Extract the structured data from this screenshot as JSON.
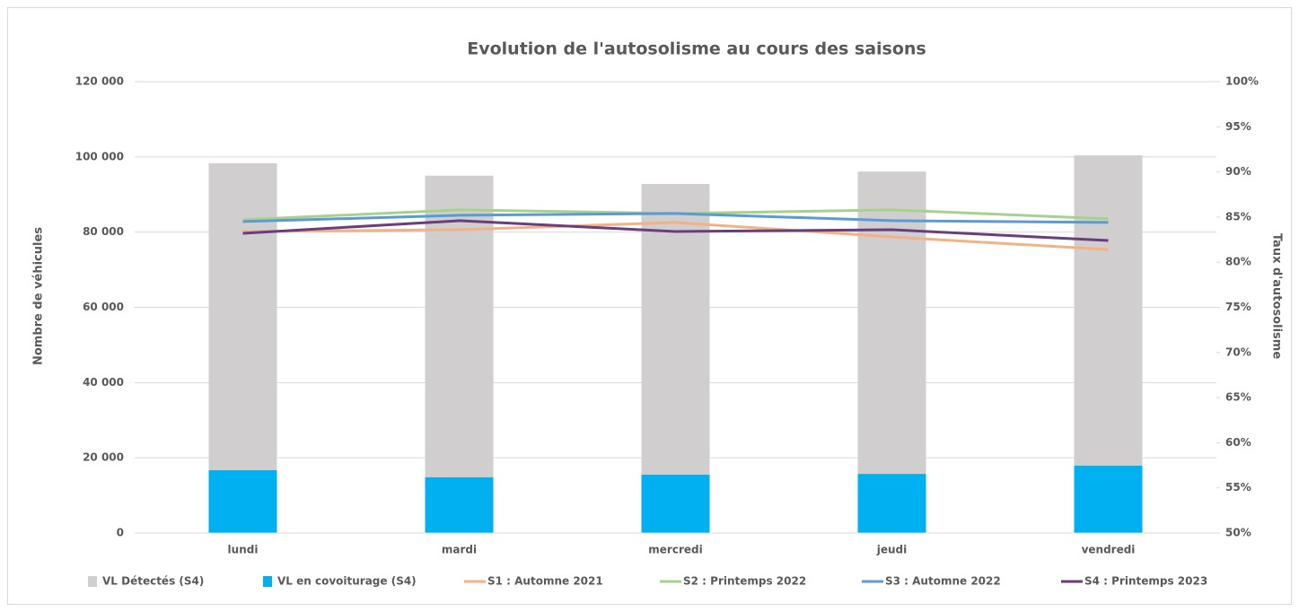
{
  "chart_data": {
    "type": "bar",
    "title": "Evolution de l'autosolisme au cours des saisons",
    "y_label": "Nombre de véhicules",
    "y2_label": "Taux d'autosolisme",
    "categories": [
      "lundi",
      "mardi",
      "mercredi",
      "jeudi",
      "vendredi"
    ],
    "series": [
      {
        "name": "VL Détectés (S4)",
        "type": "bar",
        "color": "#d0cece",
        "values": [
          98300,
          95000,
          92800,
          96100,
          100400
        ]
      },
      {
        "name": "VL en covoiturage (S4)",
        "type": "bar",
        "color": "#00b0f0",
        "values": [
          16700,
          14800,
          15500,
          15700,
          17900
        ]
      },
      {
        "name": "S1 : Automne 2021",
        "type": "line",
        "axis": "y2",
        "color": "#f4b183",
        "values": [
          83.4,
          83.6,
          84.4,
          82.8,
          81.4
        ]
      },
      {
        "name": "S2 : Printemps 2022",
        "type": "line",
        "axis": "y2",
        "color": "#a9d18e",
        "values": [
          84.7,
          85.8,
          85.4,
          85.8,
          84.8
        ]
      },
      {
        "name": "S3 : Automne 2022",
        "type": "line",
        "axis": "y2",
        "color": "#5b9bd5",
        "values": [
          84.5,
          85.2,
          85.4,
          84.6,
          84.4
        ]
      },
      {
        "name": "S4 : Printemps 2023",
        "type": "line",
        "axis": "y2",
        "color": "#6a3d7e",
        "values": [
          83.2,
          84.6,
          83.4,
          83.6,
          82.4
        ]
      }
    ],
    "ylim": [
      0,
      120000
    ],
    "yticks": [
      0,
      {
        "value": 20000,
        "label": "20 000"
      },
      {
        "value": 40000,
        "label": "40 000"
      },
      {
        "value": 60000,
        "label": "60 000"
      },
      {
        "value": 80000,
        "label": "80 000"
      },
      {
        "value": 100000,
        "label": "100 000"
      },
      {
        "value": 120000,
        "label": "120 000"
      }
    ],
    "y2lim": [
      50,
      100
    ],
    "y2ticks": [
      {
        "value": 50,
        "label": "50%"
      },
      {
        "value": 55,
        "label": "55%"
      },
      {
        "value": 60,
        "label": "60%"
      },
      {
        "value": 65,
        "label": "65%"
      },
      {
        "value": 70,
        "label": "70%"
      },
      {
        "value": 75,
        "label": "75%"
      },
      {
        "value": 80,
        "label": "80%"
      },
      {
        "value": 85,
        "label": "85%"
      },
      {
        "value": 90,
        "label": "90%"
      },
      {
        "value": 95,
        "label": "95%"
      },
      {
        "value": 100,
        "label": "100%"
      }
    ],
    "grid": true,
    "legend": "bottom"
  }
}
